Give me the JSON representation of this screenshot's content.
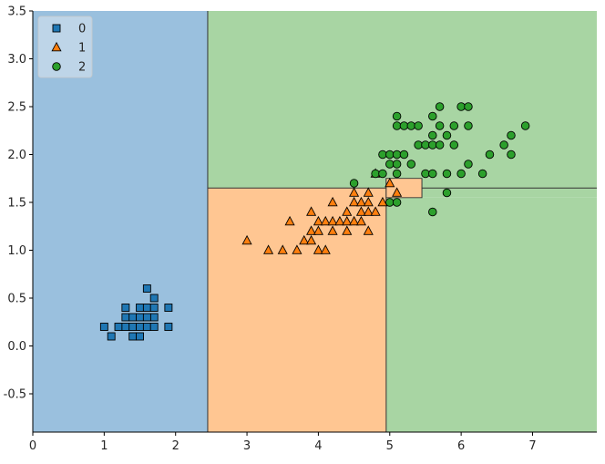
{
  "chart_data": {
    "type": "scatter",
    "title": "",
    "xlabel": "",
    "ylabel": "",
    "xlim": [
      0,
      7.9
    ],
    "ylim": [
      -0.9,
      3.5
    ],
    "xticks": [
      0,
      1,
      2,
      3,
      4,
      5,
      6,
      7
    ],
    "xtick_labels": [
      "0",
      "1",
      "2",
      "3",
      "4",
      "5",
      "6",
      "7"
    ],
    "yticks": [
      -0.5,
      0.0,
      0.5,
      1.0,
      1.5,
      2.0,
      2.5,
      3.0,
      3.5
    ],
    "ytick_labels": [
      "-0.5",
      "0.0",
      "0.5",
      "1.0",
      "1.5",
      "2.0",
      "2.5",
      "3.0",
      "3.5"
    ],
    "grid": false,
    "legend_position": "top-left",
    "decision_regions": [
      {
        "class": "0",
        "x_range": [
          0,
          2.45
        ],
        "y_range": [
          -0.9,
          3.5
        ],
        "color": "#9ac0de"
      },
      {
        "class": "2",
        "x_range": [
          2.45,
          7.9
        ],
        "y_range": [
          1.65,
          3.5
        ],
        "color": "#a8d5a3"
      },
      {
        "class": "1",
        "x_range": [
          2.45,
          4.95
        ],
        "y_range": [
          -0.9,
          1.65
        ],
        "color": "#ffc692"
      },
      {
        "class": "2",
        "x_range": [
          4.95,
          7.9
        ],
        "y_range": [
          -0.9,
          1.55
        ],
        "color": "#a8d5a3"
      },
      {
        "class": "1",
        "x_range": [
          4.95,
          5.45
        ],
        "y_range": [
          1.55,
          1.75
        ],
        "color": "#ffc692"
      },
      {
        "class": "2",
        "x_range": [
          5.45,
          7.9
        ],
        "y_range": [
          1.55,
          1.65
        ],
        "color": "#a8d5a3"
      },
      {
        "class": "2",
        "x_range": [
          4.95,
          7.9
        ],
        "y_range": [
          1.75,
          3.5
        ],
        "color": "#a8d5a3"
      }
    ],
    "series": [
      {
        "name": "0",
        "marker": "square",
        "color": "#1f77b4",
        "points": [
          [
            1.0,
            0.2
          ],
          [
            1.1,
            0.1
          ],
          [
            1.2,
            0.2
          ],
          [
            1.3,
            0.2
          ],
          [
            1.3,
            0.3
          ],
          [
            1.3,
            0.4
          ],
          [
            1.4,
            0.1
          ],
          [
            1.4,
            0.2
          ],
          [
            1.4,
            0.3
          ],
          [
            1.5,
            0.1
          ],
          [
            1.5,
            0.2
          ],
          [
            1.5,
            0.3
          ],
          [
            1.5,
            0.4
          ],
          [
            1.6,
            0.2
          ],
          [
            1.6,
            0.4
          ],
          [
            1.6,
            0.6
          ],
          [
            1.7,
            0.2
          ],
          [
            1.7,
            0.3
          ],
          [
            1.7,
            0.4
          ],
          [
            1.7,
            0.5
          ],
          [
            1.9,
            0.2
          ],
          [
            1.9,
            0.4
          ],
          [
            1.6,
            0.3
          ]
        ]
      },
      {
        "name": "1",
        "marker": "triangle",
        "color": "#ff7f0e",
        "points": [
          [
            3.0,
            1.1
          ],
          [
            3.3,
            1.0
          ],
          [
            3.5,
            1.0
          ],
          [
            3.6,
            1.3
          ],
          [
            3.7,
            1.0
          ],
          [
            3.8,
            1.1
          ],
          [
            3.9,
            1.1
          ],
          [
            3.9,
            1.2
          ],
          [
            3.9,
            1.4
          ],
          [
            4.0,
            1.0
          ],
          [
            4.0,
            1.2
          ],
          [
            4.0,
            1.3
          ],
          [
            4.1,
            1.0
          ],
          [
            4.1,
            1.3
          ],
          [
            4.2,
            1.2
          ],
          [
            4.2,
            1.3
          ],
          [
            4.2,
            1.5
          ],
          [
            4.3,
            1.3
          ],
          [
            4.4,
            1.2
          ],
          [
            4.4,
            1.3
          ],
          [
            4.4,
            1.4
          ],
          [
            4.5,
            1.3
          ],
          [
            4.5,
            1.5
          ],
          [
            4.5,
            1.6
          ],
          [
            4.6,
            1.3
          ],
          [
            4.6,
            1.4
          ],
          [
            4.6,
            1.5
          ],
          [
            4.7,
            1.2
          ],
          [
            4.7,
            1.4
          ],
          [
            4.7,
            1.5
          ],
          [
            4.7,
            1.6
          ],
          [
            4.8,
            1.4
          ],
          [
            4.8,
            1.8
          ],
          [
            4.9,
            1.5
          ],
          [
            5.0,
            1.7
          ],
          [
            5.1,
            1.6
          ]
        ]
      },
      {
        "name": "2",
        "marker": "circle",
        "color": "#2ca02c",
        "points": [
          [
            4.5,
            1.7
          ],
          [
            4.8,
            1.8
          ],
          [
            4.9,
            1.8
          ],
          [
            4.9,
            2.0
          ],
          [
            5.0,
            1.5
          ],
          [
            5.0,
            1.9
          ],
          [
            5.0,
            2.0
          ],
          [
            5.1,
            1.5
          ],
          [
            5.1,
            1.8
          ],
          [
            5.1,
            1.9
          ],
          [
            5.1,
            2.0
          ],
          [
            5.1,
            2.3
          ],
          [
            5.1,
            2.4
          ],
          [
            5.2,
            2.0
          ],
          [
            5.2,
            2.3
          ],
          [
            5.3,
            1.9
          ],
          [
            5.3,
            2.3
          ],
          [
            5.4,
            2.1
          ],
          [
            5.4,
            2.3
          ],
          [
            5.5,
            1.8
          ],
          [
            5.5,
            2.1
          ],
          [
            5.6,
            1.4
          ],
          [
            5.6,
            1.8
          ],
          [
            5.6,
            2.1
          ],
          [
            5.6,
            2.2
          ],
          [
            5.6,
            2.4
          ],
          [
            5.7,
            2.1
          ],
          [
            5.7,
            2.3
          ],
          [
            5.7,
            2.5
          ],
          [
            5.8,
            1.6
          ],
          [
            5.8,
            1.8
          ],
          [
            5.8,
            2.2
          ],
          [
            5.9,
            2.1
          ],
          [
            5.9,
            2.3
          ],
          [
            6.0,
            1.8
          ],
          [
            6.0,
            2.5
          ],
          [
            6.1,
            1.9
          ],
          [
            6.1,
            2.3
          ],
          [
            6.1,
            2.5
          ],
          [
            6.3,
            1.8
          ],
          [
            6.4,
            2.0
          ],
          [
            6.6,
            2.1
          ],
          [
            6.7,
            2.0
          ],
          [
            6.7,
            2.2
          ],
          [
            6.9,
            2.3
          ]
        ]
      }
    ]
  }
}
